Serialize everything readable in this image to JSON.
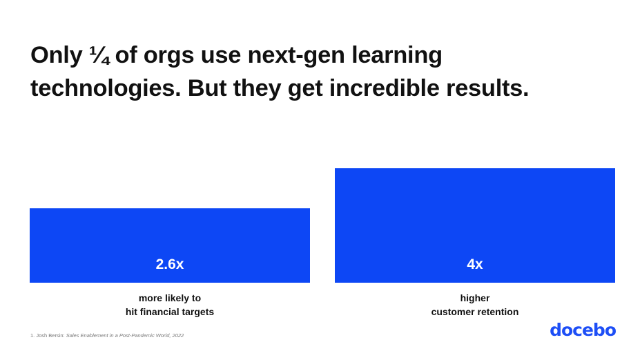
{
  "slide": {
    "title_line1": "Only ¼ of orgs use next-gen learning",
    "title_line2": "technologies. But they get incredible results.",
    "footnote_prefix": "1. Josh Bersin: ",
    "footnote_source": "Sales Enablement in a Post-Pandemic World, 2022",
    "brand": "docebo"
  },
  "colors": {
    "bar": "#0d47f5",
    "brand": "#1d4ef6",
    "text": "#111111"
  },
  "chart_data": {
    "type": "bar",
    "title": "",
    "xlabel": "",
    "ylabel": "",
    "ylim": [
      0,
      4
    ],
    "grid": false,
    "categories": [
      "more likely to hit financial targets",
      "higher customer retention"
    ],
    "values": [
      2.6,
      4
    ],
    "value_labels": [
      "2.6x",
      "4x"
    ],
    "label_lines": [
      [
        "more likely to",
        "hit financial targets"
      ],
      [
        "higher",
        "customer retention"
      ]
    ]
  }
}
